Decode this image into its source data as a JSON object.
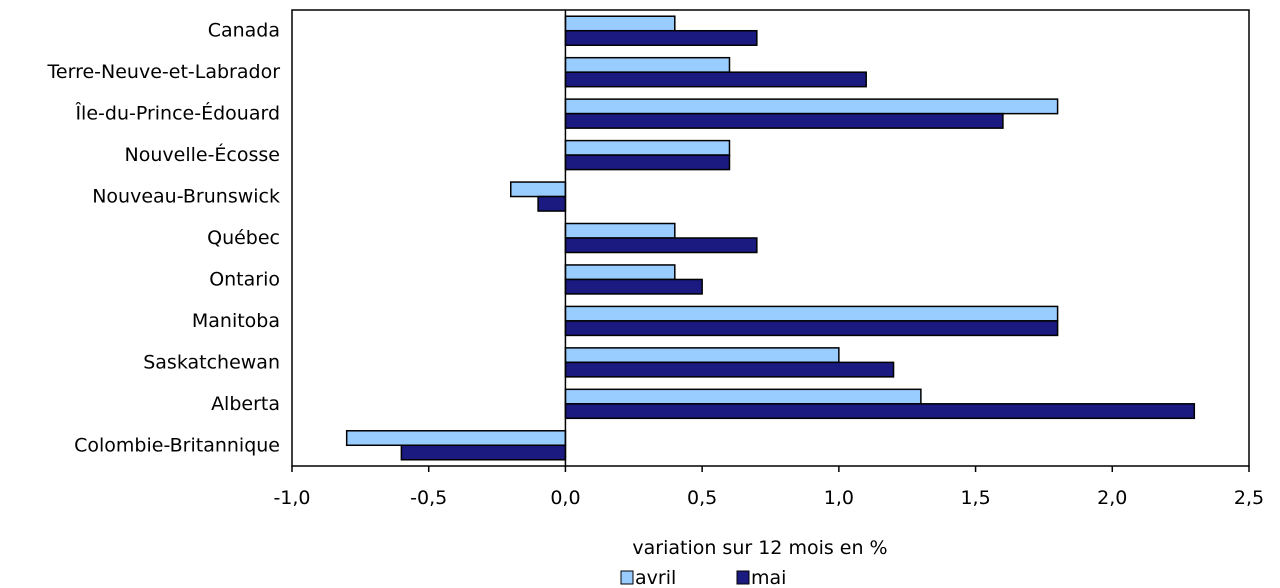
{
  "chart_data": {
    "type": "bar",
    "orientation": "horizontal",
    "categories": [
      "Canada",
      "Terre-Neuve-et-Labrador",
      "Île-du-Prince-Édouard",
      "Nouvelle-Écosse",
      "Nouveau-Brunswick",
      "Québec",
      "Ontario",
      "Manitoba",
      "Saskatchewan",
      "Alberta",
      "Colombie-Britannique"
    ],
    "series": [
      {
        "name": "avril",
        "color": "#99ccff",
        "values": [
          0.4,
          0.6,
          1.8,
          0.6,
          -0.2,
          0.4,
          0.4,
          1.8,
          1.0,
          1.3,
          -0.8
        ]
      },
      {
        "name": "mai",
        "color": "#1a1a80",
        "values": [
          0.7,
          1.1,
          1.6,
          0.6,
          -0.1,
          0.7,
          0.5,
          1.8,
          1.2,
          2.3,
          -0.6
        ]
      }
    ],
    "xlim": [
      -1.0,
      2.5
    ],
    "xticks": [
      "-1,0",
      "-0,5",
      "0,0",
      "0,5",
      "1,0",
      "1,5",
      "2,0",
      "2,5"
    ],
    "xlabel": "variation sur 12 mois en %",
    "legend_position": "bottom-center",
    "grid": false
  }
}
